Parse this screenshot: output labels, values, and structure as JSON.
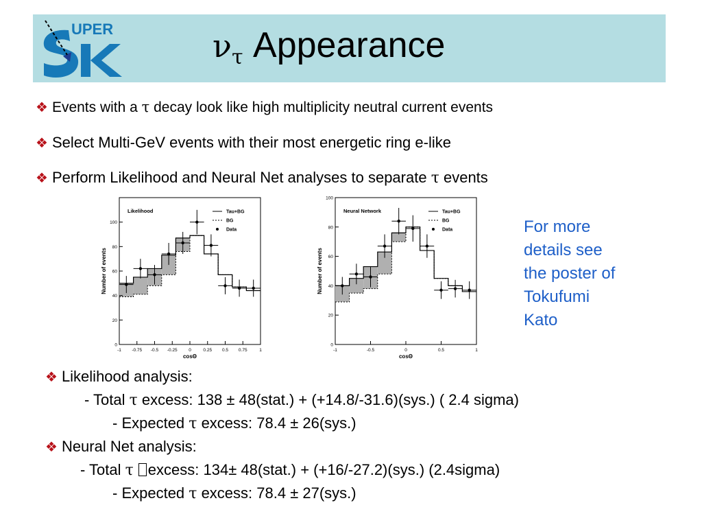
{
  "slide": {
    "title_main": "Appearance",
    "title_nu": "ν",
    "title_tau": "τ",
    "logo_text": "UPER",
    "bullets": [
      {
        "pre": "Events with a ",
        "greek": "τ",
        "post": " decay look like high multiplicity neutral current events"
      },
      {
        "pre": "Select Multi-GeV events with their most energetic ring e-like",
        "greek": "",
        "post": ""
      },
      {
        "pre": "Perform  Likelihood and Neural Net analyses to separate ",
        "greek": "τ",
        "post": " events"
      }
    ],
    "note": [
      "For more",
      "details see",
      "the poster of",
      "Tokufumi",
      "Kato"
    ],
    "results": {
      "lik_head": "Likelihood analysis:",
      "lik_total_pre": "- Total ",
      "lik_total_greek": "τ",
      "lik_total_post": " excess: 138 ± 48(stat.) + (+14.8/-31.6)(sys.) ( 2.4 sigma)",
      "lik_exp_pre": "- Expected ",
      "lik_exp_greek": "τ",
      "lik_exp_post": " excess: 78.4 ± 26(sys.)",
      "nn_head": "Neural Net analysis:",
      "nn_total_pre": "- Total  ",
      "nn_total_greek": "τ ",
      "nn_total_post": "excess:  134± 48(stat.) + (+16/-27.2)(sys.)    (2.4sigma)",
      "nn_exp_pre": "- Expected ",
      "nn_exp_greek": "τ",
      "nn_exp_post": " excess: 78.4 ± 27(sys.)"
    }
  },
  "chart_data": [
    {
      "type": "histogram",
      "title": "Likelihood",
      "xlabel": "cosΘ",
      "ylabel": "Number of events",
      "xlim": [
        -1,
        1
      ],
      "ylim": [
        0,
        120
      ],
      "xticks": [
        "-1",
        "-0.75",
        "-0.5",
        "-0.25",
        "0",
        "0.25",
        "0.5",
        "0.75",
        "1"
      ],
      "yticks": [
        "0",
        "20",
        "40",
        "60",
        "80",
        "100"
      ],
      "legend": [
        "Tau+BG",
        "BG",
        "Data"
      ],
      "bin_edges": [
        -1,
        -0.8,
        -0.6,
        -0.4,
        -0.2,
        0,
        0.2,
        0.4,
        0.6,
        0.8,
        1
      ],
      "tau_bg": [
        50,
        55,
        62,
        73,
        87,
        89,
        74,
        57,
        47,
        44
      ],
      "bg": [
        39,
        41,
        48,
        57,
        76,
        89,
        74,
        57,
        47,
        44
      ],
      "data_x": [
        -0.9,
        -0.7,
        -0.5,
        -0.3,
        -0.1,
        0.1,
        0.3,
        0.5,
        0.7,
        0.9
      ],
      "data_y": [
        49,
        62,
        57,
        74,
        83,
        100,
        81,
        48,
        46,
        46
      ],
      "data_err": [
        7,
        8,
        8,
        9,
        9,
        10,
        9,
        7,
        7,
        7
      ]
    },
    {
      "type": "histogram",
      "title": "Neural Network",
      "xlabel": "cosΘ",
      "ylabel": "Number of events",
      "xlim": [
        -1,
        1
      ],
      "ylim": [
        0,
        100
      ],
      "xticks": [
        "-1",
        "-0.5",
        "0",
        "0.5",
        "1"
      ],
      "yticks": [
        "0",
        "20",
        "40",
        "60",
        "80",
        "100"
      ],
      "legend": [
        "Tau+BG",
        "BG",
        "Data"
      ],
      "bin_edges": [
        -1,
        -0.8,
        -0.6,
        -0.4,
        -0.2,
        0,
        0.2,
        0.4,
        0.6,
        0.8,
        1
      ],
      "tau_bg": [
        40,
        45,
        53,
        63,
        76,
        80,
        64,
        45,
        40,
        36
      ],
      "bg": [
        29,
        35,
        38,
        48,
        70,
        80,
        64,
        45,
        40,
        36
      ],
      "data_x": [
        -0.9,
        -0.7,
        -0.5,
        -0.3,
        -0.1,
        0.1,
        0.3,
        0.5,
        0.7,
        0.9
      ],
      "data_y": [
        40,
        48,
        46,
        67,
        84,
        79,
        67,
        37,
        38,
        37
      ],
      "data_err": [
        6,
        7,
        7,
        8,
        9,
        9,
        8,
        6,
        6,
        6
      ]
    }
  ]
}
